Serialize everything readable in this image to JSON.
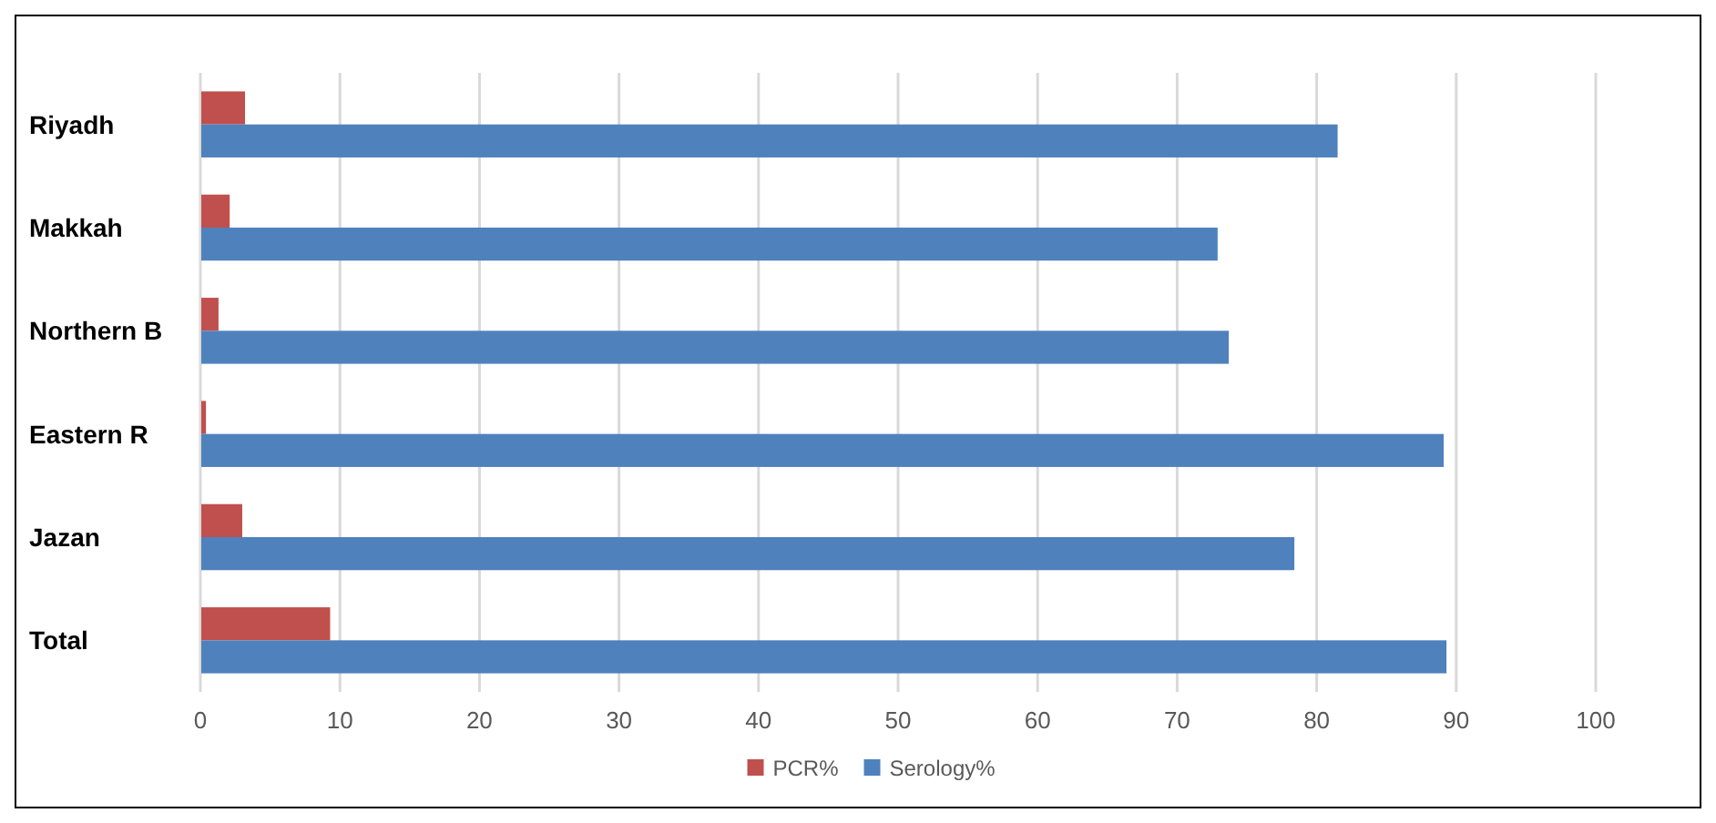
{
  "chart_data": {
    "type": "bar",
    "orientation": "horizontal",
    "categories": [
      "Riyadh",
      "Makkah",
      "Northern B",
      "Eastern R",
      "Jazan",
      "Total"
    ],
    "series": [
      {
        "name": "PCR%",
        "color": "#c0504d",
        "values": [
          3.2,
          2.1,
          1.3,
          0.4,
          3.0,
          9.3
        ]
      },
      {
        "name": "Serology%",
        "color": "#4f81bd",
        "values": [
          81.5,
          72.9,
          73.7,
          89.1,
          78.4,
          89.3
        ]
      }
    ],
    "xlim": [
      0,
      100
    ],
    "xticks": [
      0,
      10,
      20,
      30,
      40,
      50,
      60,
      70,
      80,
      90,
      100
    ],
    "grid": "x",
    "legend": "bottom"
  }
}
